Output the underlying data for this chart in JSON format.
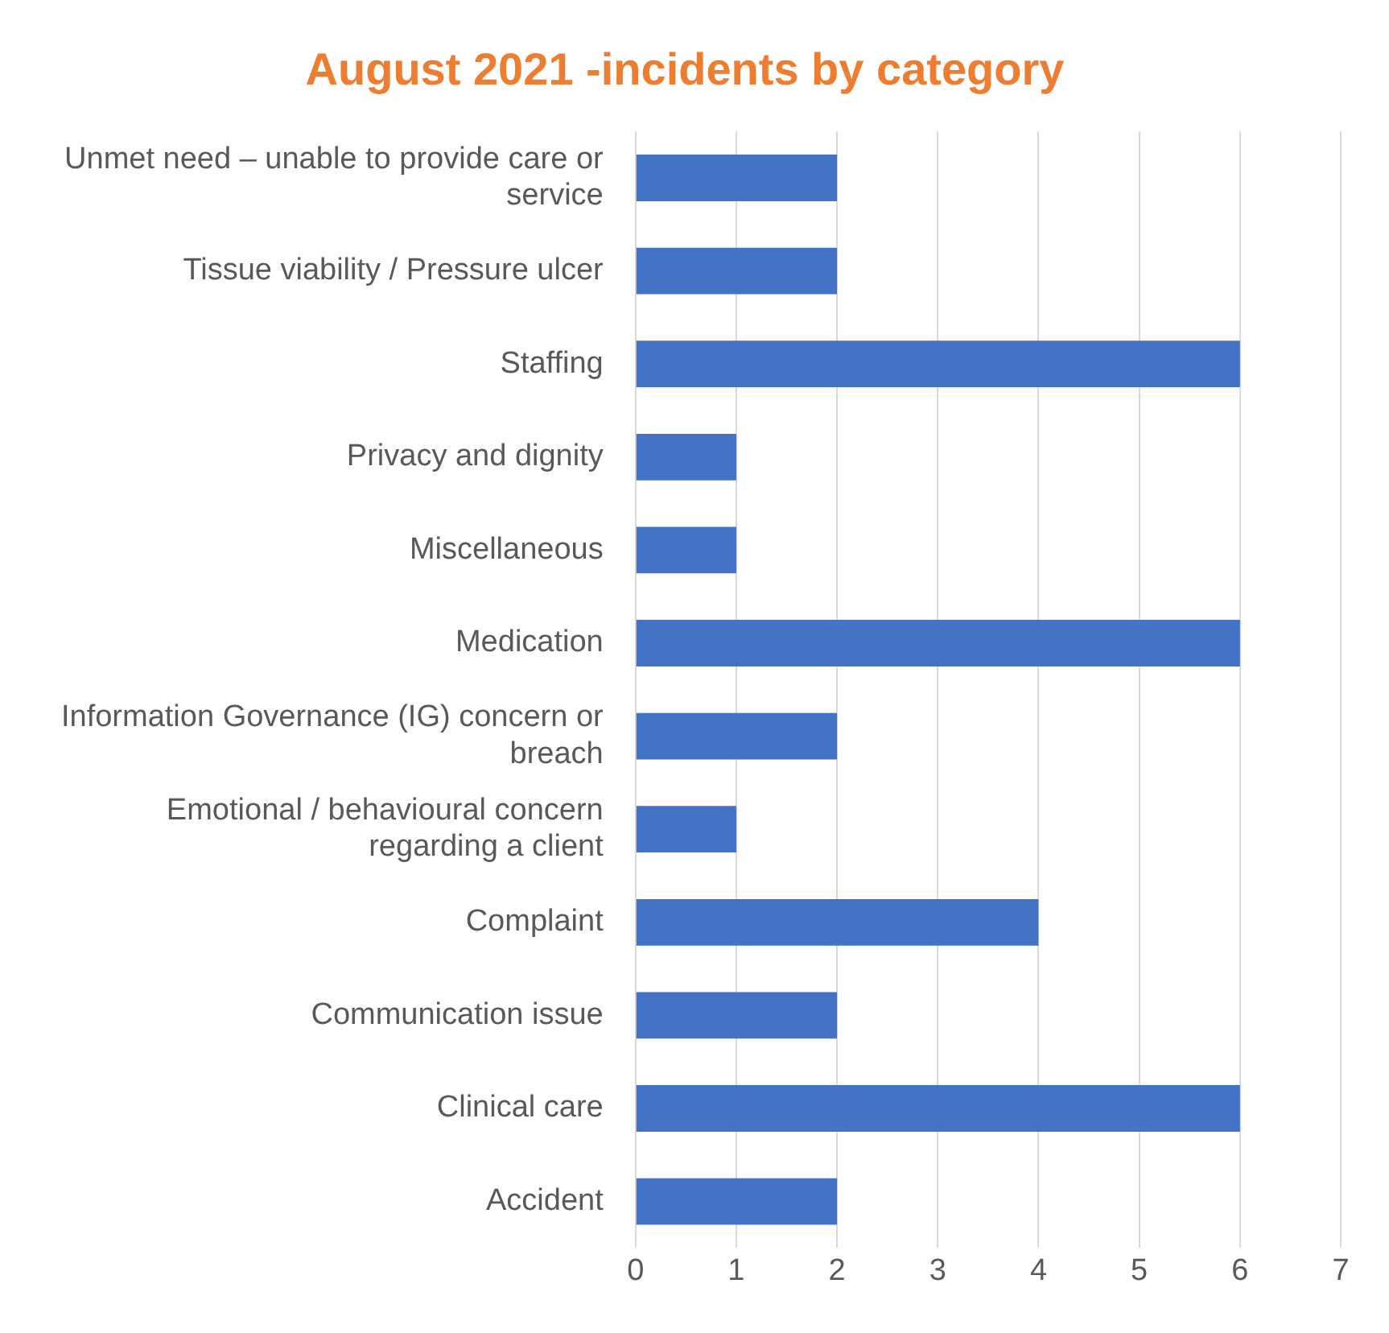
{
  "chart_data": {
    "type": "bar",
    "orientation": "horizontal",
    "title": "August 2021 -incidents by category",
    "categories": [
      "Unmet need – unable to provide care or service",
      "Tissue viability / Pressure ulcer",
      "Staffing",
      "Privacy and dignity",
      "Miscellaneous",
      "Medication",
      "Information Governance (IG) concern or breach",
      "Emotional / behavioural concern regarding a client",
      "Complaint",
      "Communication issue",
      "Clinical care",
      "Accident"
    ],
    "values": [
      2,
      2,
      6,
      1,
      1,
      6,
      2,
      1,
      4,
      2,
      6,
      2
    ],
    "color": "#4472c4",
    "xlim": [
      0,
      7
    ],
    "xticks": [
      0,
      1,
      2,
      3,
      4,
      5,
      6,
      7
    ],
    "grid": "x",
    "legend": false
  }
}
